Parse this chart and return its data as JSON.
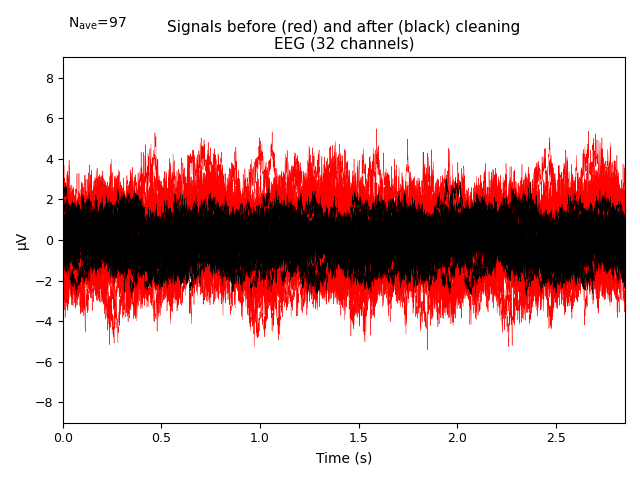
{
  "title_line1": "Signals before (red) and after (black) cleaning",
  "title_line2": "EEG (32 channels)",
  "xlabel": "Time (s)",
  "ylabel": "μV",
  "ylim": [
    -9,
    9
  ],
  "xlim": [
    0.0,
    2.85
  ],
  "xticks": [
    0.0,
    0.5,
    1.0,
    1.5,
    2.0,
    2.5
  ],
  "yticks": [
    -8,
    -6,
    -4,
    -2,
    0,
    2,
    4,
    6,
    8
  ],
  "n_channels": 32,
  "n_samples": 2850,
  "duration": 2.85,
  "red_color": "#ff0000",
  "black_color": "#000000",
  "background_color": "#ffffff",
  "title_fontsize": 11,
  "axis_label_fontsize": 10,
  "nave_fontsize": 10,
  "tick_fontsize": 9,
  "linewidth": 0.3,
  "seed": 42
}
